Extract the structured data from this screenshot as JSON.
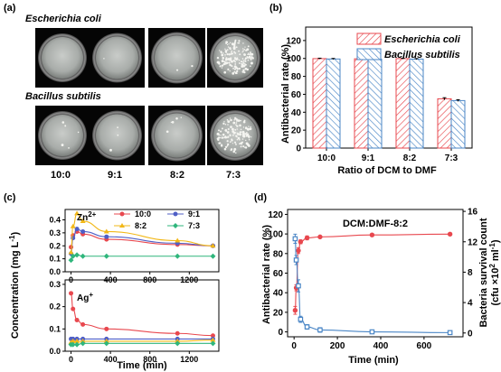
{
  "panel_a": {
    "label": "(a)",
    "species_1": "Escherichia coli",
    "species_2": "Bacillus subtilis",
    "ratios": [
      "10:0",
      "9:1",
      "8:2",
      "7:3"
    ],
    "dish_colonies_1": [
      0,
      1,
      2,
      160
    ],
    "dish_colonies_2": [
      5,
      3,
      5,
      130
    ]
  },
  "chart_data": [
    {
      "panel": "(b)",
      "type": "bar",
      "categories": [
        "10:0",
        "9:1",
        "8:2",
        "7:3"
      ],
      "series": [
        {
          "name": "Escherichia coli",
          "values": [
            99.8,
            99.6,
            99.8,
            55.0
          ],
          "errors": [
            0.5,
            0.6,
            0.4,
            1.2
          ],
          "color": "#e8484f",
          "hatch": "/"
        },
        {
          "name": "Bacillus subtilis",
          "values": [
            99.4,
            99.2,
            99.3,
            53.0
          ],
          "errors": [
            0.6,
            0.7,
            0.6,
            1.0
          ],
          "color": "#4a86c6",
          "hatch": "\\"
        }
      ],
      "xlabel": "Ratio of DCM to DMF",
      "ylabel": "Antibacterial rate (%)",
      "ylim": [
        0,
        135
      ],
      "yticks": [
        0,
        20,
        40,
        60,
        80,
        100,
        120
      ],
      "legend": "top-right"
    },
    {
      "panel": "(c)",
      "type": "line",
      "ylabel_html": [
        "Concentration (mg L",
        "-1",
        ")"
      ],
      "xlabel": "Time (min)",
      "xlim": [
        -60,
        1500
      ],
      "xticks": [
        0,
        400,
        800,
        1200
      ],
      "subplots": [
        {
          "ion": "Zn",
          "ion_sup": "2+",
          "ylim": [
            0,
            0.48
          ],
          "yticks": [
            0.0,
            0.1,
            0.2,
            0.3,
            0.4
          ],
          "series": [
            {
              "name": "10:0",
              "color": "#e8484f",
              "marker": "circle",
              "x": [
                0,
                20,
                60,
                120,
                360,
                1080,
                1440
              ],
              "y": [
                0.19,
                0.28,
                0.31,
                0.29,
                0.25,
                0.21,
                0.2
              ]
            },
            {
              "name": "9:1",
              "color": "#4f5fc6",
              "marker": "circle",
              "x": [
                0,
                20,
                60,
                120,
                360,
                1080,
                1440
              ],
              "y": [
                0.14,
                0.26,
                0.33,
                0.31,
                0.27,
                0.22,
                0.2
              ]
            },
            {
              "name": "8:2",
              "color": "#f2b818",
              "marker": "triangle",
              "x": [
                0,
                20,
                60,
                120,
                360,
                1080,
                1440
              ],
              "y": [
                0.15,
                0.35,
                0.45,
                0.39,
                0.31,
                0.24,
                0.2
              ]
            },
            {
              "name": "7:3",
              "color": "#2fb67c",
              "marker": "diamond",
              "x": [
                0,
                20,
                60,
                120,
                360,
                1080,
                1440
              ],
              "y": [
                0.09,
                0.12,
                0.13,
                0.12,
                0.12,
                0.12,
                0.12
              ]
            }
          ]
        },
        {
          "ion": "Ag",
          "ion_sup": "+",
          "ylim": [
            0,
            0.32
          ],
          "yticks": [
            0.0,
            0.1,
            0.2,
            0.3
          ],
          "series": [
            {
              "name": "10:0",
              "color": "#e8484f",
              "marker": "circle",
              "x": [
                0,
                20,
                60,
                120,
                360,
                1080,
                1440
              ],
              "y": [
                0.26,
                0.19,
                0.14,
                0.12,
                0.1,
                0.08,
                0.07
              ]
            },
            {
              "name": "9:1",
              "color": "#4f5fc6",
              "marker": "circle",
              "x": [
                0,
                20,
                60,
                120,
                360,
                1080,
                1440
              ],
              "y": [
                0.055,
                0.055,
                0.055,
                0.055,
                0.055,
                0.055,
                0.055
              ]
            },
            {
              "name": "8:2",
              "color": "#f2b818",
              "marker": "triangle",
              "x": [
                0,
                20,
                60,
                120,
                360,
                1080,
                1440
              ],
              "y": [
                0.04,
                0.045,
                0.045,
                0.045,
                0.045,
                0.045,
                0.05
              ]
            },
            {
              "name": "7:3",
              "color": "#2fb67c",
              "marker": "diamond",
              "x": [
                0,
                20,
                60,
                120,
                360,
                1080,
                1440
              ],
              "y": [
                0.03,
                0.03,
                0.03,
                0.035,
                0.035,
                0.035,
                0.035
              ]
            }
          ]
        }
      ],
      "legend": "top-right of upper subplot, 2 columns"
    },
    {
      "panel": "(d)",
      "type": "line",
      "annotation": "DCM:DMF-8:2",
      "xlabel": "Time (min)",
      "ylabel": "Antibacterial rate (%)",
      "ylabel_right": [
        "Bacteria survival count",
        "(cfu ×10",
        "2",
        " ml",
        "-1",
        ")"
      ],
      "xlim": [
        -30,
        780
      ],
      "xticks": [
        0,
        200,
        400,
        600
      ],
      "ylim": [
        -5,
        125
      ],
      "yticks": [
        0,
        20,
        40,
        60,
        80,
        100,
        120
      ],
      "ylim_right": [
        -0.5,
        16.25
      ],
      "yticks_right": [
        0,
        4,
        8,
        12,
        16
      ],
      "series": [
        {
          "name": "Antibacterial rate",
          "axis": "left",
          "color": "#e8484f",
          "marker": "circle",
          "x": [
            5,
            10,
            20,
            30,
            60,
            120,
            360,
            720
          ],
          "y": [
            22,
            45,
            83,
            92,
            96,
            97,
            99,
            99.8
          ],
          "errors": [
            4,
            3,
            3,
            2,
            2,
            1,
            1,
            1
          ]
        },
        {
          "name": "Bacteria survival count",
          "axis": "right",
          "color": "#4a86c6",
          "marker": "square",
          "x": [
            5,
            10,
            20,
            30,
            60,
            120,
            360,
            720
          ],
          "y": [
            12.4,
            9.6,
            6.2,
            1.8,
            0.8,
            0.4,
            0.15,
            0.05
          ],
          "errors": [
            0.6,
            0.6,
            0.8,
            0.4,
            0.3,
            0.3,
            0.2,
            0.1
          ]
        }
      ]
    }
  ]
}
